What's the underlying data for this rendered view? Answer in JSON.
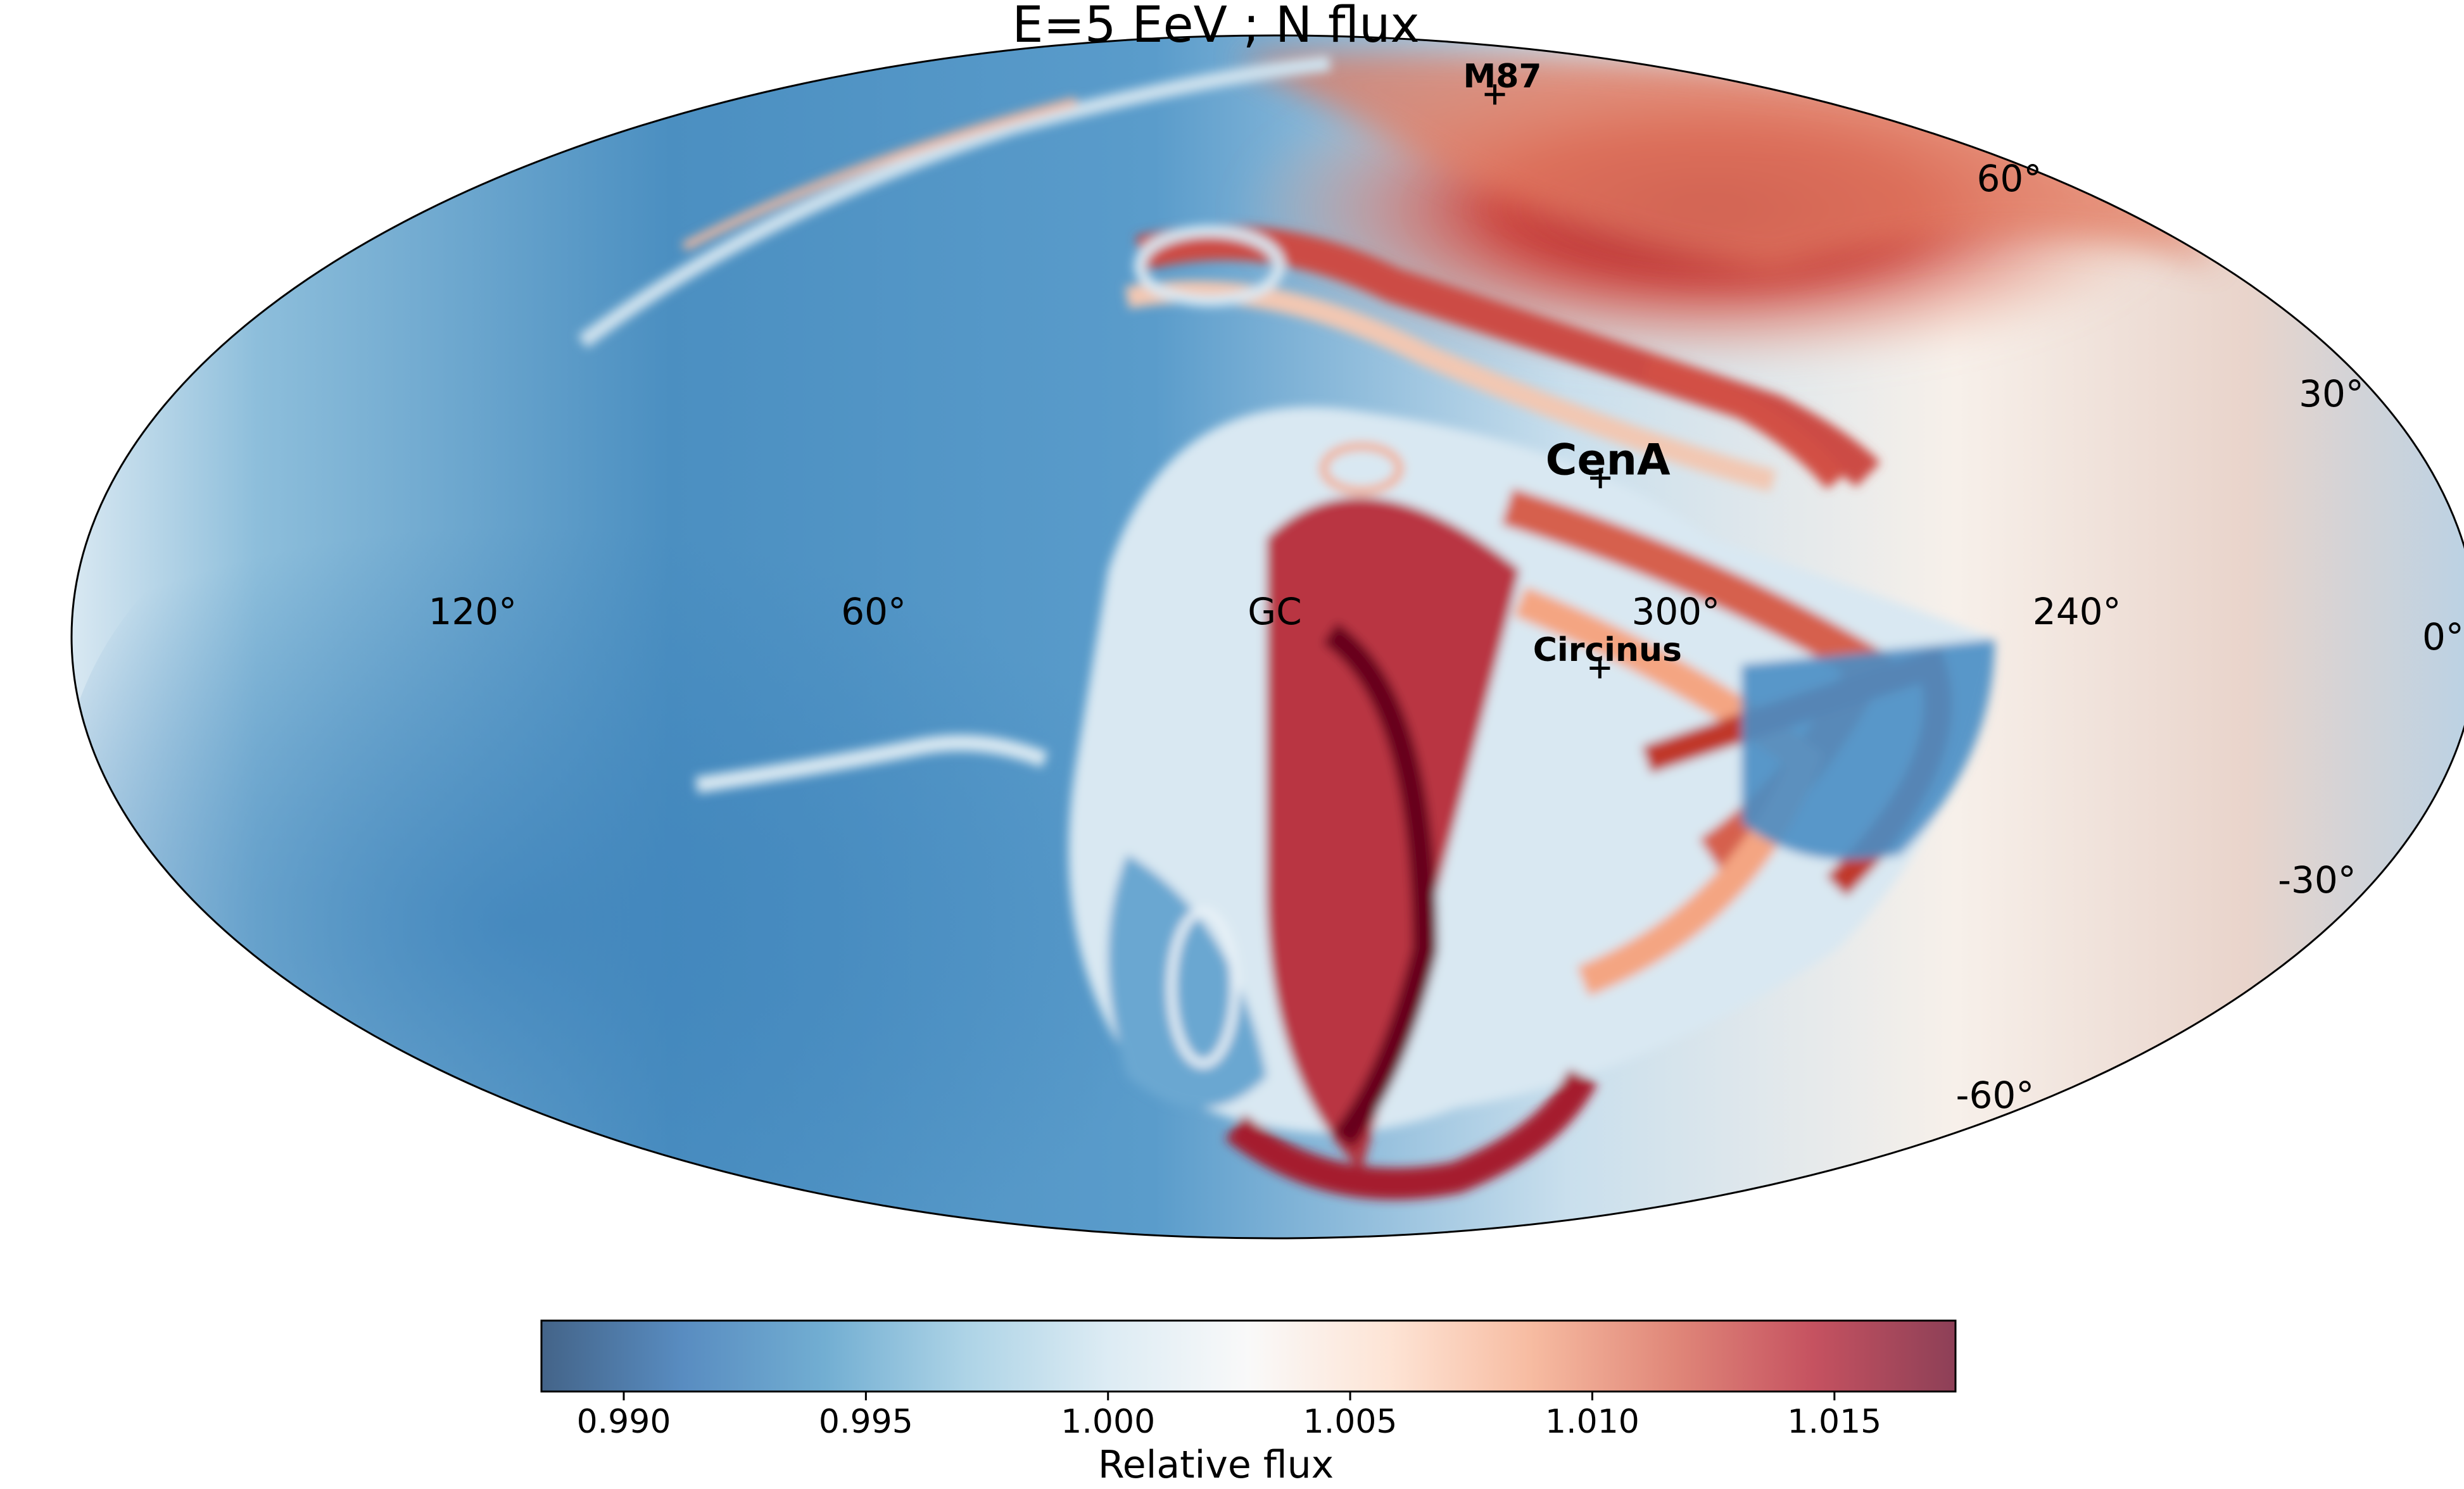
{
  "chart_data": {
    "type": "heatmap",
    "projection": "mollweide",
    "title": "E=5 EeV ; N flux",
    "coordinate_system": "galactic",
    "longitude_direction": "increasing to the left",
    "lat_ticks": [
      {
        "value": 60,
        "label": "60°"
      },
      {
        "value": 30,
        "label": "30°"
      },
      {
        "value": 0,
        "label": "0°"
      },
      {
        "value": -30,
        "label": "-30°"
      },
      {
        "value": -60,
        "label": "-60°"
      }
    ],
    "lon_ticks": [
      {
        "value": 120,
        "label": "120°"
      },
      {
        "value": 60,
        "label": "60°"
      },
      {
        "value": 0,
        "label": "GC"
      },
      {
        "value": 300,
        "label": "300°"
      },
      {
        "value": 240,
        "label": "240°"
      }
    ],
    "sources": [
      {
        "name": "M87",
        "lon": 283.8,
        "lat": 74.5
      },
      {
        "name": "CenA",
        "lon": 309.5,
        "lat": 19.4
      },
      {
        "name": "Circinus",
        "lon": 311.3,
        "lat": -3.8
      }
    ],
    "colorbar": {
      "label": "Relative flux",
      "range": [
        0.9883,
        1.0175
      ],
      "ticks": [
        0.99,
        0.995,
        1.0,
        1.005,
        1.01,
        1.015
      ],
      "tick_labels": [
        "0.990",
        "0.995",
        "1.000",
        "1.005",
        "1.010",
        "1.015"
      ],
      "colormap": "RdBu_r",
      "colormap_stops": [
        "#053061",
        "#2166ac",
        "#4393c3",
        "#92c5de",
        "#d1e5f0",
        "#f7f7f7",
        "#fddbc7",
        "#f4a582",
        "#d6604d",
        "#b2182b",
        "#67001f"
      ]
    },
    "grid": false
  }
}
